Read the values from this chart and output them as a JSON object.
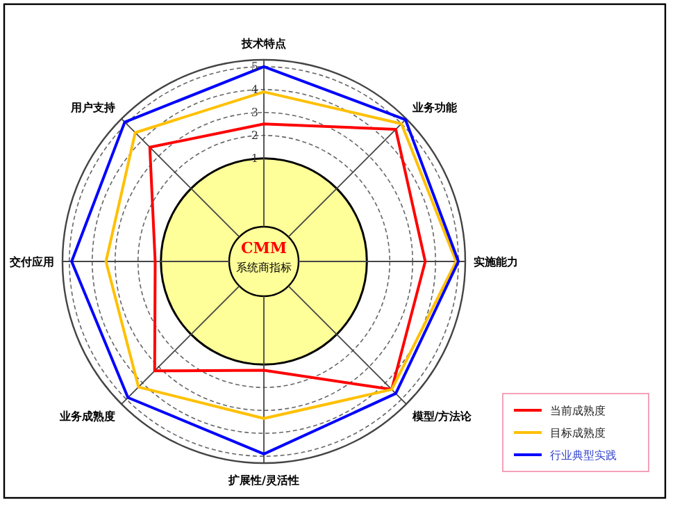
{
  "chart_data": {
    "type": "radar",
    "categories": [
      "技术特点",
      "业务功能",
      "实施能力",
      "模型/方法论",
      "扩展性/灵活性",
      "业务成熟度",
      "交付应用",
      "用户支持"
    ],
    "series": [
      {
        "name": "当前成熟度",
        "color": "#ff0000",
        "values": [
          2.5,
          4.65,
          3.55,
          4.4,
          1.25,
          3.25,
          1.25,
          3.55
        ]
      },
      {
        "name": "目标成熟度",
        "color": "#ffc000",
        "values": [
          3.9,
          5.0,
          4.9,
          4.4,
          3.35,
          4.25,
          3.4,
          4.45
        ]
      },
      {
        "name": "行业典型实践",
        "color": "#0000ff",
        "values": [
          5.0,
          5.25,
          5.0,
          4.65,
          4.9,
          4.9,
          4.9,
          5.1
        ]
      }
    ],
    "ylim": [
      -3.5,
      5.3
    ],
    "yticks": [
      1,
      2,
      3,
      4,
      5
    ],
    "grid": true,
    "legend": "bottom right",
    "annotations": [
      "CMM",
      "系统商指标"
    ]
  }
}
